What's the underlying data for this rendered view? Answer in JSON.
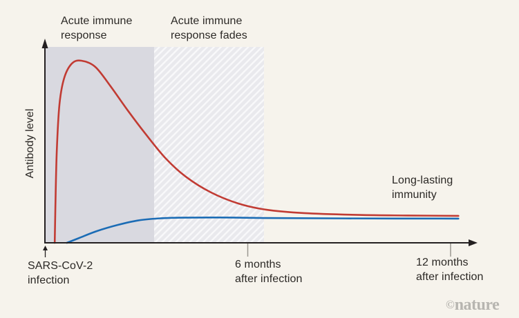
{
  "figure": {
    "watermark": {
      "symbol": "©",
      "text": "nature"
    }
  },
  "colors": {
    "background": "#f6f3ec",
    "text": "#2b2825",
    "axis": "#231f20",
    "tick": "#9b9891",
    "watermark": "#b7b5b0",
    "region_acute": "#d9d9e0",
    "region_fades": "#e9e9ed",
    "curve_red": "#c13b33",
    "curve_blue": "#1b6cb5"
  },
  "chart_data": {
    "type": "line",
    "title": "",
    "xlabel": "",
    "ylabel": "Antibody level",
    "x_unit": "months after infection",
    "xlim_months": [
      0,
      12.8
    ],
    "ylim": [
      0,
      110
    ],
    "grid": false,
    "annotations": {
      "acute_response": "Acute immune\nresponse",
      "acute_fades": "Acute immune\nresponse fades",
      "long_lasting": "Long-lasting\nimmunity"
    },
    "origin_marker": {
      "months": 0,
      "label": "SARS-CoV-2\ninfection"
    },
    "x_ticks": [
      {
        "months": 6,
        "label": "6 months\nafter infection"
      },
      {
        "months": 12,
        "label": "12 months\nafter infection"
      }
    ],
    "regions": [
      {
        "label": "Acute immune response",
        "x0_months": 0,
        "x1_months": 3.23,
        "style": "solid",
        "fill": "#d9d9e0"
      },
      {
        "label": "Acute immune response fades",
        "x0_months": 3.23,
        "x1_months": 6.48,
        "style": "hatched",
        "fill": "#e9e9ed"
      }
    ],
    "series": [
      {
        "id": "curve-red-acute-antibody",
        "color": "#c13b33",
        "points": [
          [
            0.29,
            0
          ],
          [
            0.31,
            20
          ],
          [
            0.35,
            50
          ],
          [
            0.43,
            76
          ],
          [
            0.57,
            90.5
          ],
          [
            0.8,
            98.5
          ],
          [
            1.08,
            100
          ],
          [
            1.49,
            96.6
          ],
          [
            1.94,
            86
          ],
          [
            2.45,
            72.7
          ],
          [
            2.96,
            60.2
          ],
          [
            3.58,
            46.2
          ],
          [
            4.19,
            36
          ],
          [
            4.91,
            27.7
          ],
          [
            5.72,
            21.6
          ],
          [
            6.54,
            18.2
          ],
          [
            7.67,
            16.3
          ],
          [
            9.3,
            15.3
          ],
          [
            10.73,
            15
          ],
          [
            12.23,
            14.8
          ]
        ]
      },
      {
        "id": "curve-blue-long-lasting",
        "color": "#1b6cb5",
        "points": [
          [
            0.65,
            0
          ],
          [
            1.02,
            2.7
          ],
          [
            1.53,
            6.4
          ],
          [
            2.15,
            9.8
          ],
          [
            2.76,
            12.3
          ],
          [
            3.37,
            13.4
          ],
          [
            3.99,
            13.8
          ],
          [
            5.21,
            13.9
          ],
          [
            6.54,
            13.6
          ],
          [
            8.89,
            13.4
          ],
          [
            12.23,
            13.3
          ]
        ]
      }
    ]
  }
}
